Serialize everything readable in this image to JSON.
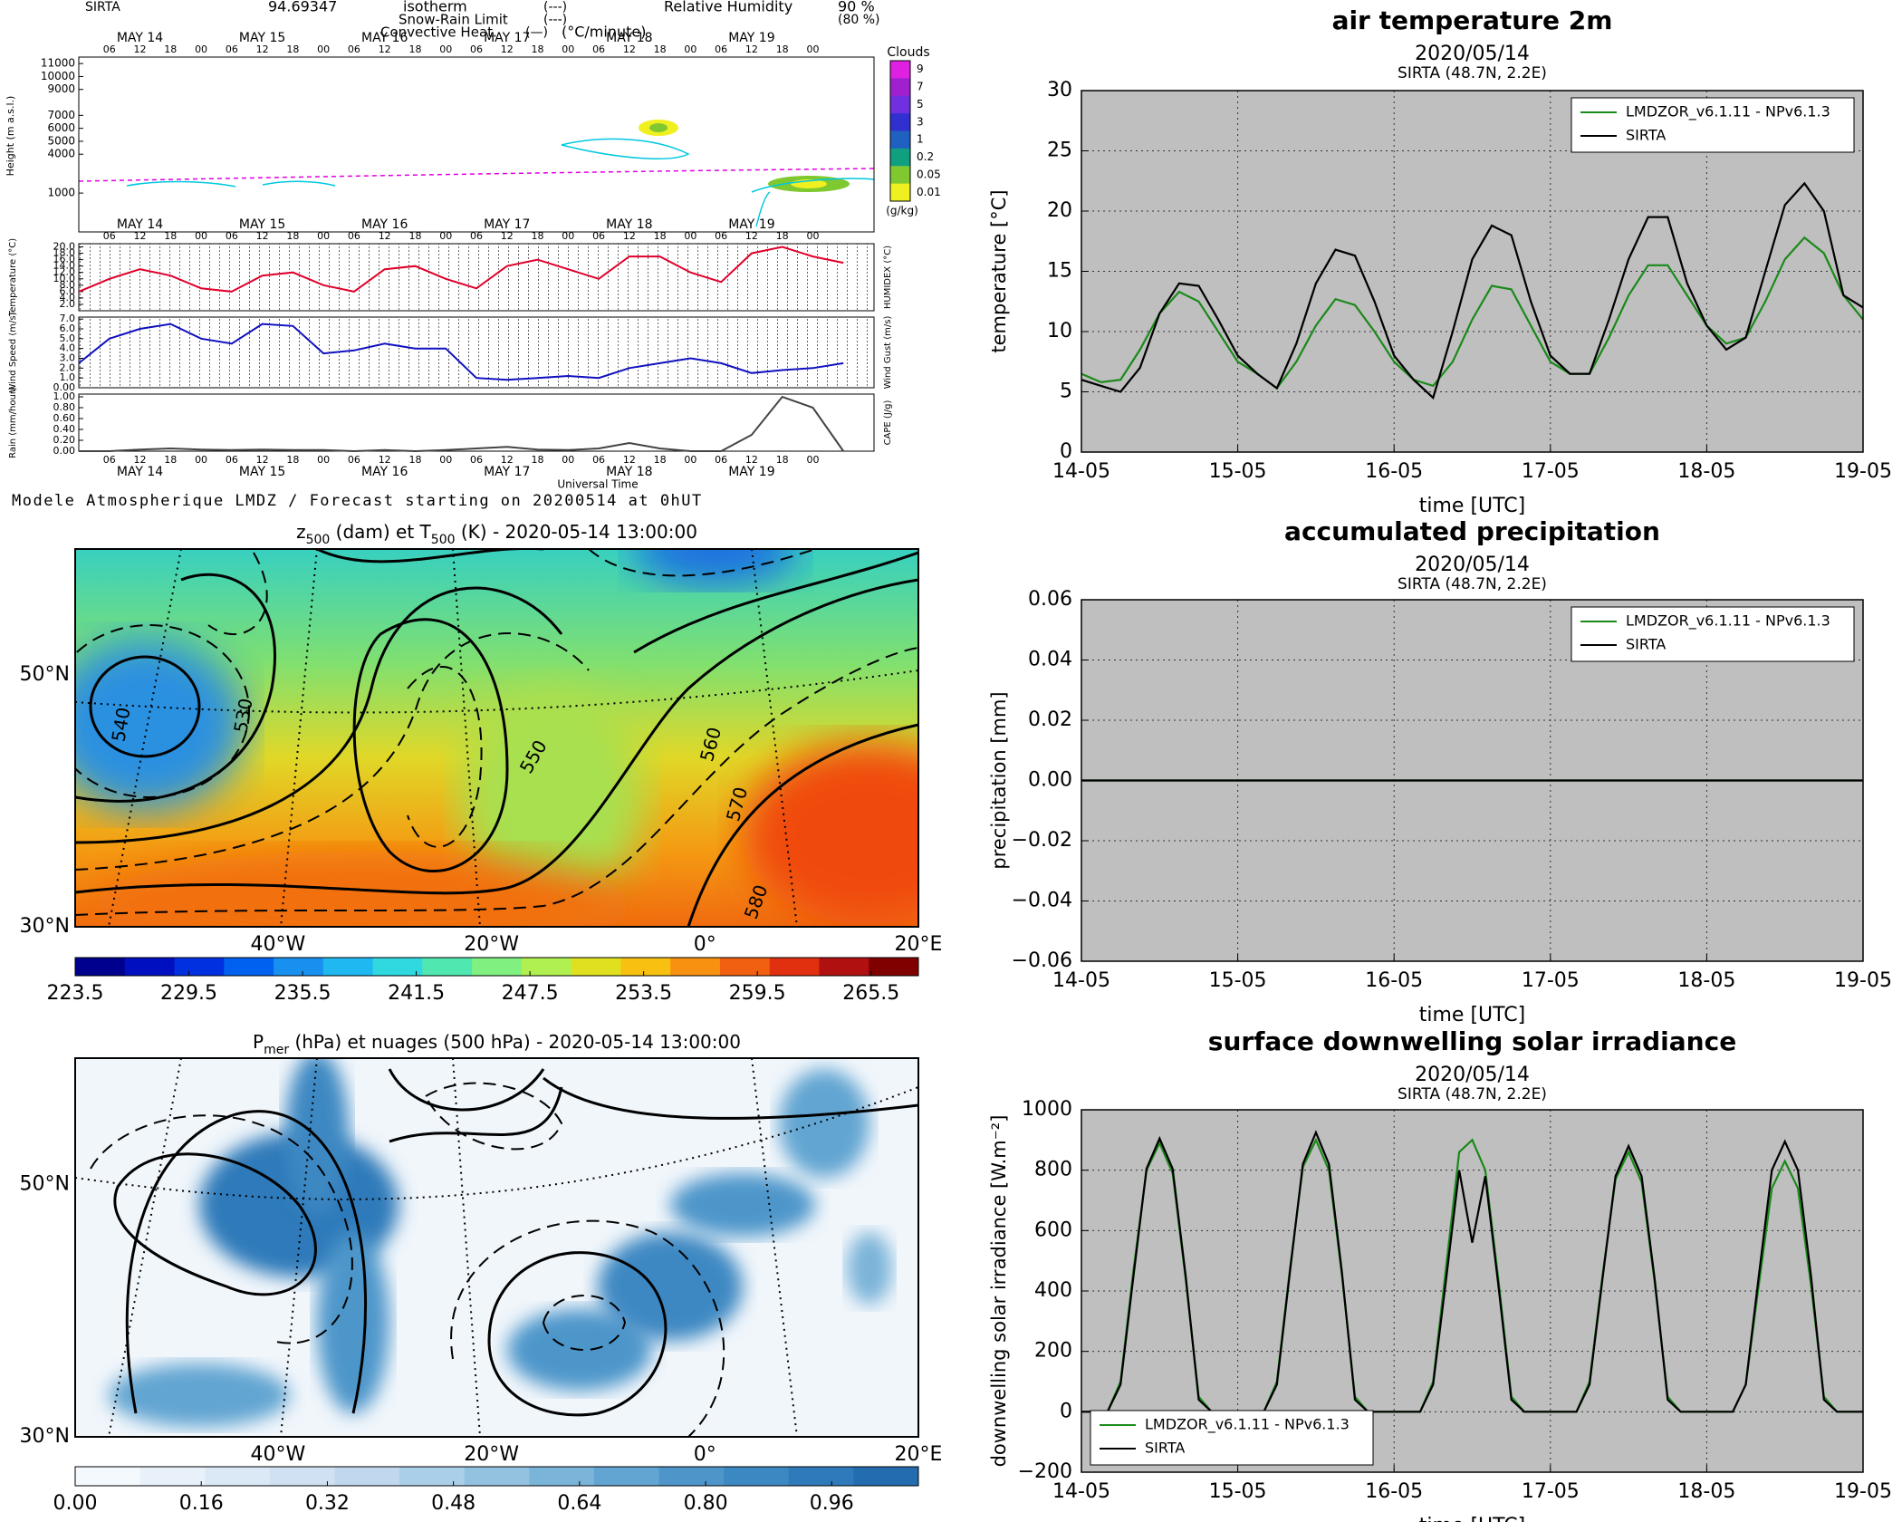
{
  "chart_data": [
    {
      "type": "meteogram",
      "header": [
        "SIRTA",
        "94.69347",
        "isotherm",
        "(---)",
        "Snow-Rain Limit",
        "(---)",
        "Convective Heat.",
        "(—)",
        "(°C/minute)",
        "Relative Humidity",
        "90 %",
        "(80 %)"
      ],
      "header_colors": [
        "#000000",
        "#000000",
        "#e000e0",
        "#e000e0",
        "#e000e0",
        "#e000e0",
        "#e00020",
        "#e00020",
        "#e00020",
        "#00c8e0",
        "#00c8e0",
        "#00c8e0"
      ],
      "days": [
        "MAY 14",
        "MAY 15",
        "MAY 16",
        "MAY 17",
        "MAY 18",
        "MAY 19"
      ],
      "hours": [
        "06",
        "12",
        "18",
        "00"
      ],
      "xlim": [
        0,
        156
      ],
      "x": [
        0,
        6,
        12,
        18,
        24,
        30,
        36,
        42,
        48,
        54,
        60,
        66,
        72,
        78,
        84,
        90,
        96,
        102,
        108,
        114,
        120,
        126,
        132,
        138,
        144,
        150
      ],
      "xlabel": "Universal Time",
      "footer": "Modele Atmospherique LMDZ / Forecast starting on 20200514 at 0hUT",
      "cloud_panel": {
        "ylabel": "Height (m a.s.l.)",
        "ylim": [
          -2000,
          11500
        ],
        "yticks": [
          11000,
          10000,
          9000,
          7000,
          6000,
          5000,
          4000,
          1000
        ],
        "colorbar_title": "Clouds",
        "colorbar_ticks": [
          9,
          7,
          5,
          3,
          1,
          0.2,
          0.05,
          0.01
        ],
        "colorbar_unit": "(g/kg)",
        "colors": [
          "#e020e0",
          "#a020d0",
          "#7030e0",
          "#3030d0",
          "#2060c0",
          "#10a080",
          "#80c830",
          "#f0f020"
        ]
      },
      "panels": [
        {
          "ylabel": "Temperature (°C)",
          "ylabel2": "HUMIDEX (°C)",
          "ylim": [
            0,
            21
          ],
          "yticks": [
            {
              "value": 20,
              "label": "20.0"
            },
            {
              "value": 18,
              "label": "18.0"
            },
            {
              "value": 16,
              "label": "16.0"
            },
            {
              "value": 14,
              "label": "14.0"
            },
            {
              "value": 12,
              "label": "12.0"
            },
            {
              "value": 10,
              "label": "10.0"
            },
            {
              "value": 8,
              "label": "8.0"
            },
            {
              "value": 6,
              "label": "6.0"
            },
            {
              "value": 4,
              "label": "4.0"
            },
            {
              "value": 2,
              "label": "2.0"
            }
          ],
          "color": "#e0002a",
          "values": [
            6,
            10,
            13,
            11,
            7,
            6,
            11,
            12,
            8,
            6,
            13,
            14,
            10,
            7,
            14,
            16,
            13,
            10,
            17,
            17,
            12,
            9,
            18,
            20,
            17,
            15
          ]
        },
        {
          "ylabel": "Wind Speed (m/s)",
          "ylabel2": "Wind Gust (m/s)",
          "ylim": [
            0,
            7.2
          ],
          "yticks": [
            {
              "value": 7,
              "label": "7.0"
            },
            {
              "value": 6,
              "label": "6.0"
            },
            {
              "value": 5,
              "label": "5.0"
            },
            {
              "value": 4,
              "label": "4.0"
            },
            {
              "value": 3,
              "label": "3.0"
            },
            {
              "value": 2,
              "label": "2.0"
            },
            {
              "value": 1,
              "label": "1.0"
            },
            {
              "value": 0,
              "label": "0.00"
            }
          ],
          "color": "#1010c0",
          "values": [
            2.5,
            5,
            6,
            6.5,
            5,
            4.5,
            6.5,
            6.3,
            3.5,
            3.8,
            4.5,
            4,
            4,
            1,
            0.8,
            1,
            1.2,
            1,
            2,
            2.5,
            3,
            2.5,
            1.5,
            1.8,
            2,
            2.5
          ]
        },
        {
          "ylabel": "Rain (mm/hour)",
          "ylabel2": "CAPE (J/g)",
          "ylim": [
            0,
            1.05
          ],
          "yticks": [
            {
              "value": 1,
              "label": "1.00"
            },
            {
              "value": 0.8,
              "label": "0.80"
            },
            {
              "value": 0.6,
              "label": "0.60"
            },
            {
              "value": 0.4,
              "label": "0.40"
            },
            {
              "value": 0.2,
              "label": "0.20"
            },
            {
              "value": 0,
              "label": "0.00"
            }
          ],
          "color": "#444444",
          "values": [
            0,
            0,
            0.03,
            0.05,
            0.03,
            0.02,
            0.03,
            0.02,
            0.02,
            0,
            0.02,
            0,
            0.02,
            0.05,
            0.08,
            0.03,
            0.02,
            0.05,
            0.15,
            0.05,
            0,
            0,
            0.3,
            1,
            0.8,
            0
          ]
        }
      ]
    },
    {
      "type": "map",
      "title": [
        "z",
        "500",
        " (dam) et T",
        "500",
        " (K) - 2020-05-14 13:00:00"
      ],
      "latlim": [
        30,
        60
      ],
      "lonlim": [
        -59,
        20
      ],
      "lat_ticks": [
        {
          "value": 50,
          "label": "50°N"
        },
        {
          "value": 30,
          "label": "30°N"
        }
      ],
      "lon_ticks": [
        {
          "value": -40,
          "label": "40°W"
        },
        {
          "value": -20,
          "label": "20°W"
        },
        {
          "value": 0,
          "label": "0°"
        },
        {
          "value": 20,
          "label": "20°E"
        }
      ],
      "clim": [
        223.5,
        268
      ],
      "cticks": [
        223.5,
        229.5,
        235.5,
        241.5,
        247.5,
        253.5,
        259.5,
        265.5
      ],
      "colors": [
        "#00008f",
        "#0010c0",
        "#0030e0",
        "#0060f0",
        "#1890f0",
        "#20b8f0",
        "#30d8e0",
        "#50e8b0",
        "#80f080",
        "#b0f050",
        "#e0e020",
        "#f8c010",
        "#f89010",
        "#f06010",
        "#e03010",
        "#b01010",
        "#800000"
      ],
      "contour_labels": [
        "540",
        "530",
        "550",
        "560",
        "570",
        "580"
      ]
    },
    {
      "type": "map",
      "title": [
        "P",
        "mer",
        " (hPa) et nuages (500 hPa) - 2020-05-14 13:00:00"
      ],
      "latlim": [
        30,
        60
      ],
      "lonlim": [
        -59,
        20
      ],
      "lat_ticks": [
        {
          "value": 50,
          "label": "50°N"
        },
        {
          "value": 30,
          "label": "30°N"
        }
      ],
      "lon_ticks": [
        {
          "value": -40,
          "label": "40°W"
        },
        {
          "value": -20,
          "label": "20°W"
        },
        {
          "value": 0,
          "label": "0°"
        },
        {
          "value": 20,
          "label": "20°E"
        }
      ],
      "clim": [
        0,
        1.07
      ],
      "cticks": [
        {
          "value": 0,
          "label": "0.00"
        },
        0.16,
        0.32,
        0.48,
        0.64,
        {
          "value": 0.8,
          "label": "0.80"
        },
        0.96
      ],
      "colors": [
        "#f4f9fd",
        "#e8f1fa",
        "#dbe9f6",
        "#cfe1f2",
        "#bfd8ee",
        "#aacfe8",
        "#92c2e0",
        "#7ab4d9",
        "#62a5d2",
        "#4e96ca",
        "#3c88c2",
        "#2f7aba",
        "#236cb0"
      ],
      "contour_labels": []
    },
    {
      "type": "line",
      "title": "air temperature 2m",
      "subtitle": [
        "2020/05/14",
        "SIRTA (48.7N, 2.2E)"
      ],
      "xlabel": "time [UTC]",
      "ylabel": "temperature [°C]",
      "xlim": [
        0,
        120
      ],
      "xticks": [
        {
          "value": 0,
          "label": "14-05"
        },
        {
          "value": 24,
          "label": "15-05"
        },
        {
          "value": 48,
          "label": "16-05"
        },
        {
          "value": 72,
          "label": "17-05"
        },
        {
          "value": 96,
          "label": "18-05"
        },
        {
          "value": 120,
          "label": "19-05"
        }
      ],
      "ylim": [
        0,
        30
      ],
      "yticks": [
        0,
        5,
        10,
        15,
        20,
        25,
        30
      ],
      "grid": true,
      "legend": "upper right",
      "x": [
        0,
        3,
        6,
        9,
        12,
        15,
        18,
        21,
        24,
        27,
        30,
        33,
        36,
        39,
        42,
        45,
        48,
        51,
        54,
        57,
        60,
        63,
        66,
        69,
        72,
        75,
        78,
        81,
        84,
        87,
        90,
        93,
        96,
        99,
        102,
        105,
        108,
        111,
        114,
        117,
        120
      ],
      "series": [
        {
          "name": "LMDZOR_v6.1.11 - NPv6.1.3",
          "color": "#1a8a1a",
          "values": [
            6.5,
            5.8,
            6,
            8.5,
            11.5,
            13.3,
            12.5,
            10,
            7.5,
            6.5,
            5.3,
            7.5,
            10.5,
            12.7,
            12.2,
            10,
            7.5,
            6,
            5.5,
            7.5,
            11,
            13.8,
            13.5,
            10.5,
            7.5,
            6.5,
            6.5,
            9.5,
            13,
            15.5,
            15.5,
            13,
            10.5,
            9,
            9.5,
            12.5,
            16,
            17.8,
            16.5,
            13,
            11
          ]
        },
        {
          "name": "SIRTA",
          "color": "#000000",
          "values": [
            6,
            5.5,
            5,
            7,
            11.5,
            14,
            13.8,
            11,
            8,
            6.5,
            5.3,
            9,
            14,
            16.8,
            16.3,
            12.5,
            8,
            6,
            4.5,
            10,
            16,
            18.8,
            18,
            12.5,
            8,
            6.5,
            6.5,
            11,
            16,
            19.5,
            19.5,
            14,
            10.5,
            8.5,
            9.5,
            15,
            20.5,
            22.3,
            20,
            13,
            12
          ]
        }
      ]
    },
    {
      "type": "line",
      "title": "accumulated precipitation",
      "subtitle": [
        "2020/05/14",
        "SIRTA (48.7N, 2.2E)"
      ],
      "xlabel": "time [UTC]",
      "ylabel": "precipitation [mm]",
      "xlim": [
        0,
        120
      ],
      "xticks": [
        {
          "value": 0,
          "label": "14-05"
        },
        {
          "value": 24,
          "label": "15-05"
        },
        {
          "value": 48,
          "label": "16-05"
        },
        {
          "value": 72,
          "label": "17-05"
        },
        {
          "value": 96,
          "label": "18-05"
        },
        {
          "value": 120,
          "label": "19-05"
        }
      ],
      "ylim": [
        -0.06,
        0.06
      ],
      "yticks": [
        {
          "value": -0.06,
          "label": "−0.06"
        },
        {
          "value": -0.04,
          "label": "−0.04"
        },
        {
          "value": -0.02,
          "label": "−0.02"
        },
        {
          "value": 0,
          "label": "0.00"
        },
        0.02,
        0.04,
        0.06
      ],
      "grid": true,
      "legend": "upper right",
      "x": [
        0,
        24,
        48,
        72,
        96,
        120
      ],
      "series": [
        {
          "name": "LMDZOR_v6.1.11 - NPv6.1.3",
          "color": "#1a8a1a",
          "values": [
            0,
            0,
            0,
            0,
            0,
            0
          ]
        },
        {
          "name": "SIRTA",
          "color": "#000000",
          "values": [
            0,
            0,
            0,
            0,
            0,
            0
          ]
        }
      ]
    },
    {
      "type": "line",
      "title": "surface downwelling solar irradiance",
      "subtitle": [
        "2020/05/14",
        "SIRTA (48.7N, 2.2E)"
      ],
      "xlabel": "time [UTC]",
      "ylabel": "downwelling solar irradiance [W.m⁻²]",
      "xlim": [
        0,
        120
      ],
      "xticks": [
        {
          "value": 0,
          "label": "14-05"
        },
        {
          "value": 24,
          "label": "15-05"
        },
        {
          "value": 48,
          "label": "16-05"
        },
        {
          "value": 72,
          "label": "17-05"
        },
        {
          "value": 96,
          "label": "18-05"
        },
        {
          "value": 120,
          "label": "19-05"
        }
      ],
      "ylim": [
        -200,
        1000
      ],
      "yticks": [
        {
          "value": -200,
          "label": "−200"
        },
        0,
        200,
        400,
        600,
        800,
        1000
      ],
      "grid": true,
      "legend": "lower left",
      "x": [
        0,
        2,
        4,
        6,
        8,
        10,
        12,
        14,
        16,
        18,
        20,
        22,
        24,
        26,
        28,
        30,
        32,
        34,
        36,
        38,
        40,
        42,
        44,
        46,
        48,
        50,
        52,
        54,
        56,
        58,
        60,
        62,
        64,
        66,
        68,
        70,
        72,
        74,
        76,
        78,
        80,
        82,
        84,
        86,
        88,
        90,
        92,
        94,
        96,
        98,
        100,
        102,
        104,
        106,
        108,
        110,
        112,
        114,
        116,
        118,
        120
      ],
      "series": [
        {
          "name": "LMDZOR_v6.1.11 - NPv6.1.3",
          "color": "#1a8a1a",
          "values": [
            0,
            0,
            0,
            100,
            470,
            800,
            890,
            790,
            440,
            50,
            0,
            0,
            0,
            0,
            0,
            100,
            470,
            810,
            900,
            800,
            450,
            50,
            0,
            0,
            0,
            0,
            0,
            100,
            480,
            860,
            900,
            800,
            440,
            50,
            0,
            0,
            0,
            0,
            0,
            100,
            450,
            770,
            860,
            760,
            430,
            50,
            0,
            0,
            0,
            0,
            0,
            90,
            420,
            740,
            830,
            740,
            420,
            50,
            0,
            0,
            0
          ]
        },
        {
          "name": "SIRTA",
          "color": "#000000",
          "values": [
            0,
            0,
            0,
            90,
            450,
            805,
            905,
            805,
            450,
            40,
            0,
            0,
            0,
            0,
            0,
            90,
            460,
            820,
            925,
            820,
            460,
            40,
            0,
            0,
            0,
            0,
            0,
            90,
            440,
            800,
            560,
            780,
            420,
            40,
            0,
            0,
            0,
            0,
            0,
            90,
            440,
            780,
            880,
            780,
            440,
            40,
            0,
            0,
            0,
            0,
            0,
            90,
            450,
            800,
            895,
            800,
            450,
            40,
            0,
            0,
            0
          ]
        }
      ]
    }
  ]
}
